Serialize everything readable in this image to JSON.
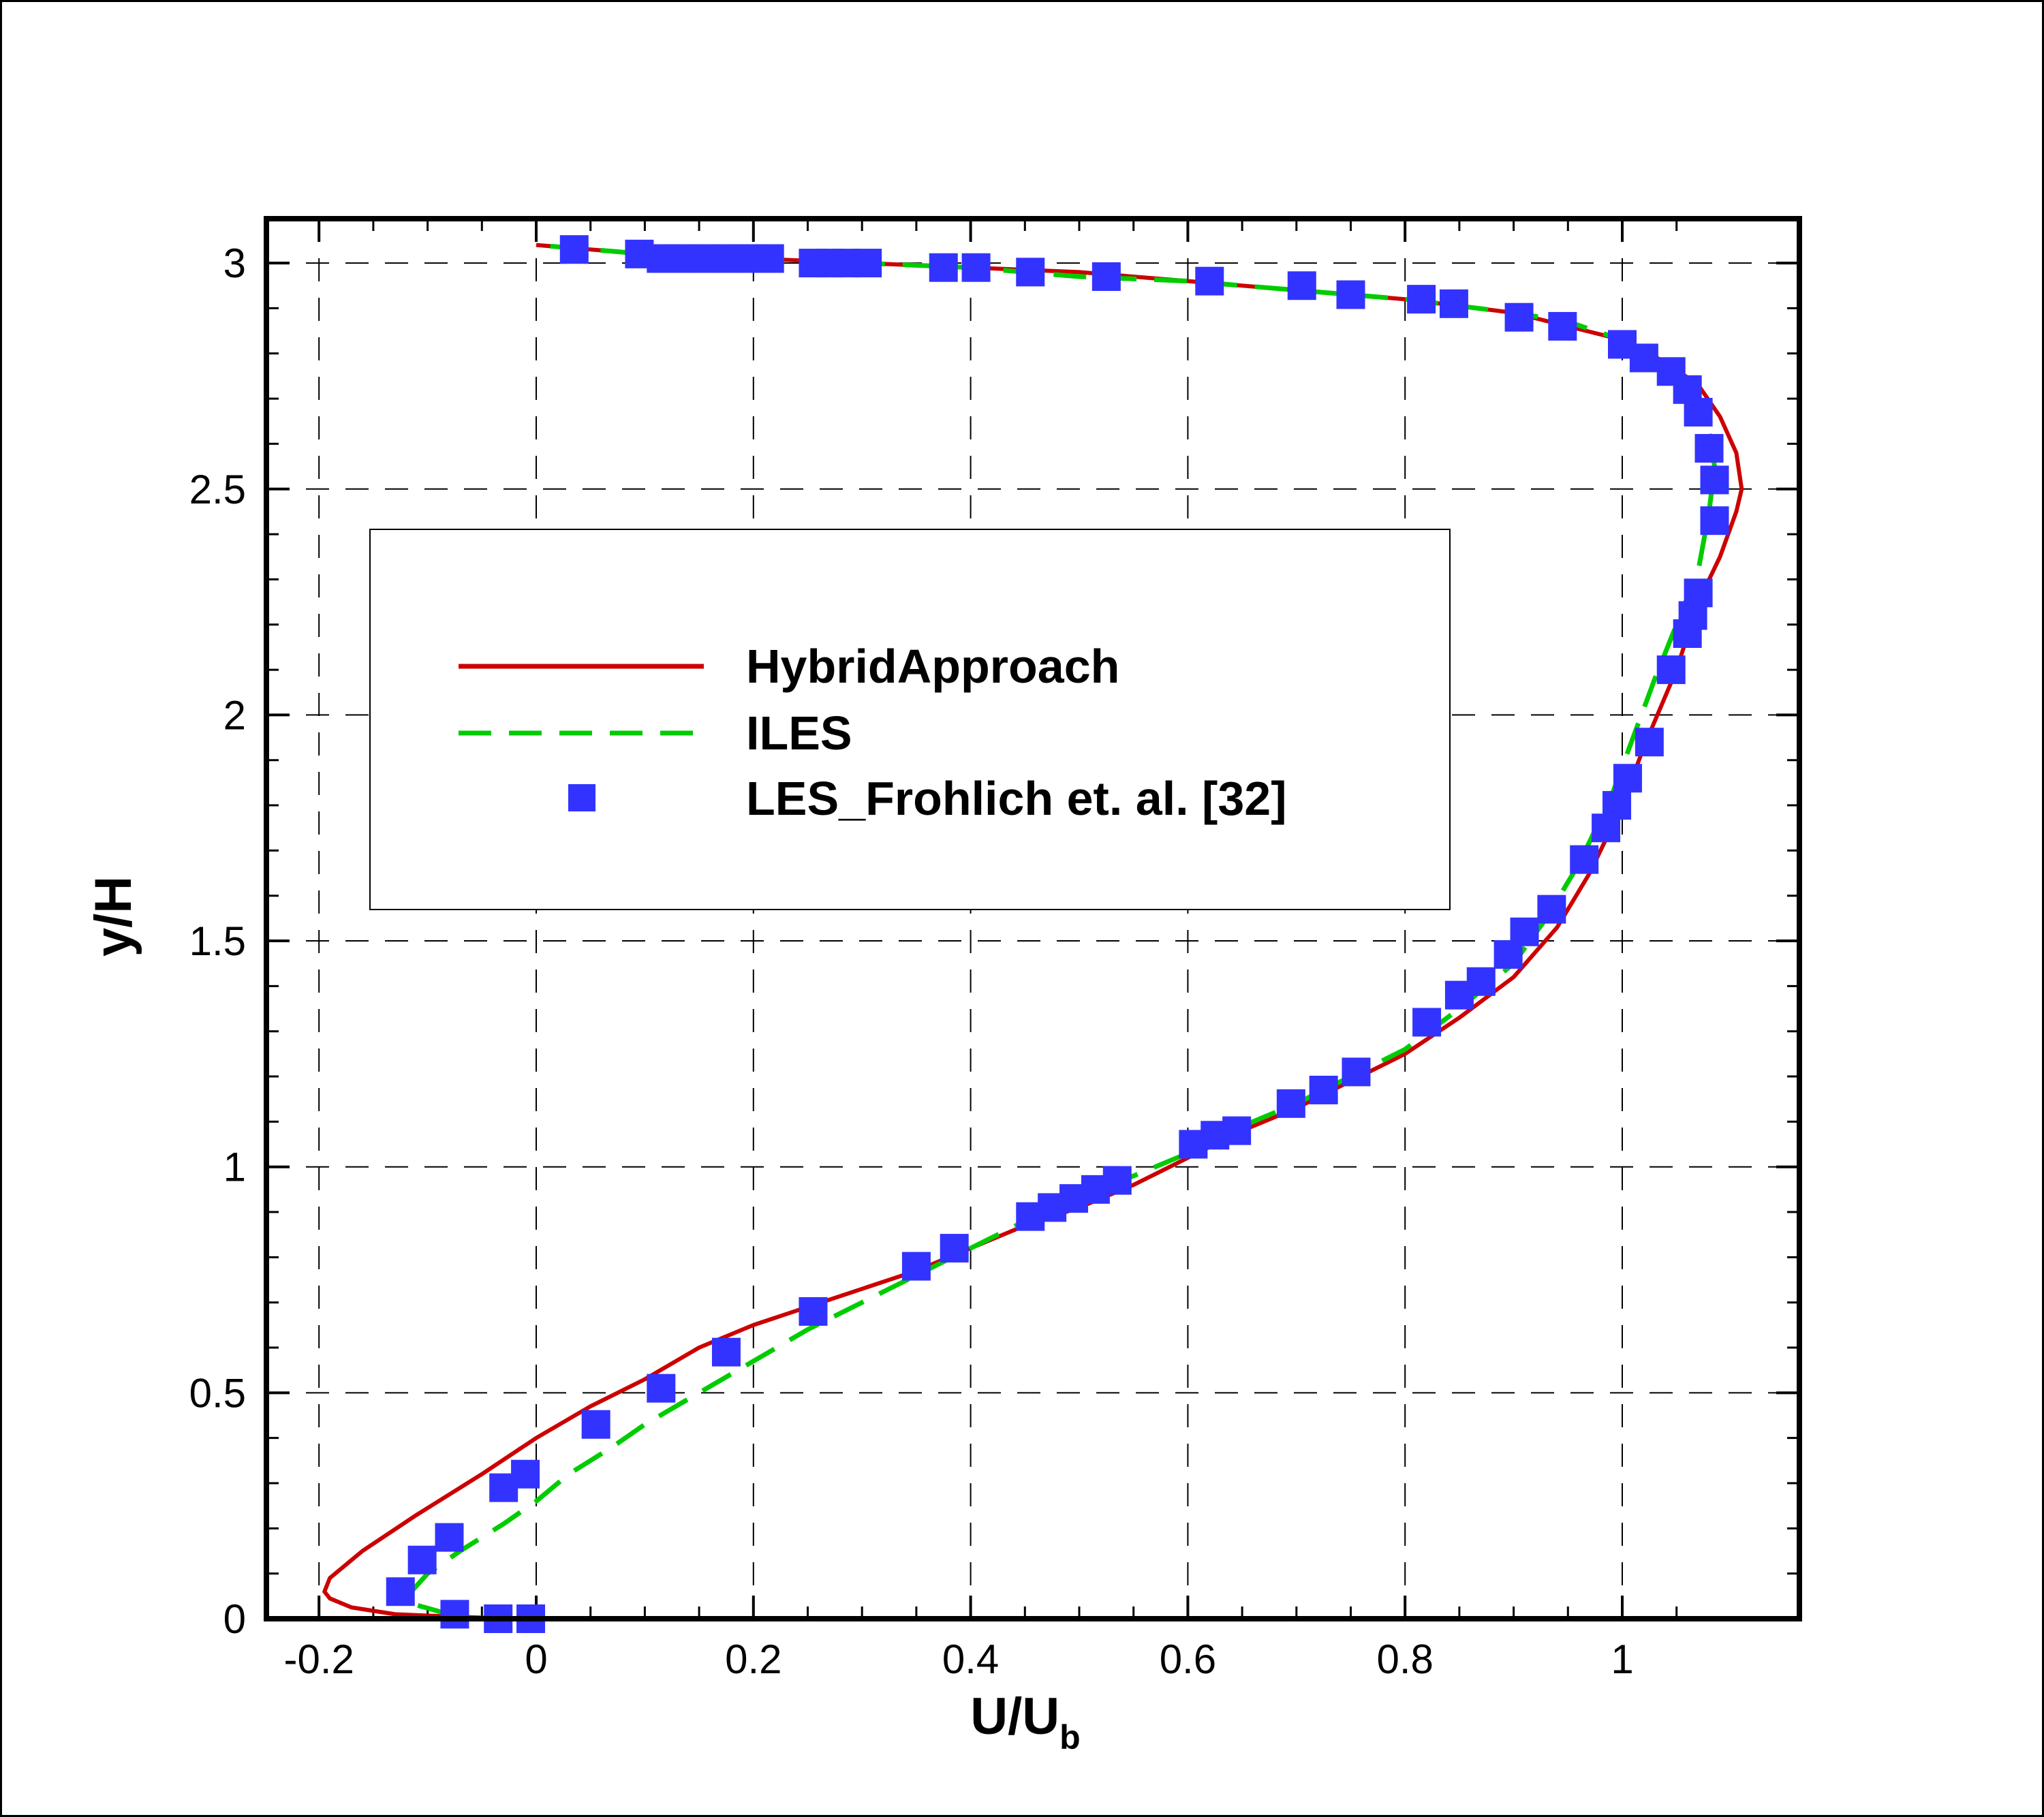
{
  "chart_data": {
    "type": "line",
    "xlabel": "U/U",
    "xlabel_subscript": "b",
    "ylabel": "y/H",
    "xlim": [
      -0.2,
      1.1
    ],
    "ylim": [
      0,
      3.1
    ],
    "x_ticks": [
      -0.2,
      0,
      0.2,
      0.4,
      0.6,
      0.8,
      1
    ],
    "x_tick_labels": [
      "-0.2",
      "0",
      "0.2",
      "0.4",
      "0.6",
      "0.8",
      "1"
    ],
    "y_ticks": [
      0,
      0.5,
      1,
      1.5,
      2,
      2.5,
      3
    ],
    "y_tick_labels": [
      "0",
      "0.5",
      "1",
      "1.5",
      "2",
      "2.5",
      "3"
    ],
    "grid": true,
    "legend_position": "center-left",
    "colors": {
      "hybrid": "#cc0000",
      "iles": "#00cc00",
      "les": "#3333ff"
    },
    "series": [
      {
        "name": "HybridApproach",
        "style": "solid",
        "color": "#cc0000",
        "points": [
          [
            -0.02,
            0.0
          ],
          [
            -0.08,
            0.005
          ],
          [
            -0.13,
            0.01
          ],
          [
            -0.17,
            0.025
          ],
          [
            -0.19,
            0.045
          ],
          [
            -0.195,
            0.06
          ],
          [
            -0.19,
            0.09
          ],
          [
            -0.16,
            0.15
          ],
          [
            -0.11,
            0.23
          ],
          [
            -0.05,
            0.32
          ],
          [
            0.0,
            0.4
          ],
          [
            0.05,
            0.47
          ],
          [
            0.1,
            0.53
          ],
          [
            0.15,
            0.6
          ],
          [
            0.2,
            0.65
          ],
          [
            0.25,
            0.69
          ],
          [
            0.3,
            0.73
          ],
          [
            0.35,
            0.77
          ],
          [
            0.4,
            0.82
          ],
          [
            0.45,
            0.87
          ],
          [
            0.5,
            0.91
          ],
          [
            0.55,
            0.96
          ],
          [
            0.6,
            1.02
          ],
          [
            0.65,
            1.08
          ],
          [
            0.7,
            1.13
          ],
          [
            0.75,
            1.19
          ],
          [
            0.8,
            1.25
          ],
          [
            0.85,
            1.33
          ],
          [
            0.9,
            1.42
          ],
          [
            0.94,
            1.53
          ],
          [
            0.97,
            1.65
          ],
          [
            1.0,
            1.8
          ],
          [
            1.02,
            1.93
          ],
          [
            1.05,
            2.1
          ],
          [
            1.07,
            2.25
          ],
          [
            1.09,
            2.35
          ],
          [
            1.105,
            2.45
          ],
          [
            1.11,
            2.5
          ],
          [
            1.105,
            2.58
          ],
          [
            1.09,
            2.66
          ],
          [
            1.07,
            2.73
          ],
          [
            1.04,
            2.78
          ],
          [
            1.0,
            2.83
          ],
          [
            0.95,
            2.86
          ],
          [
            0.9,
            2.89
          ],
          [
            0.8,
            2.92
          ],
          [
            0.7,
            2.94
          ],
          [
            0.6,
            2.96
          ],
          [
            0.5,
            2.98
          ],
          [
            0.4,
            2.99
          ],
          [
            0.3,
            3.0
          ],
          [
            0.2,
            3.01
          ],
          [
            0.1,
            3.02
          ],
          [
            0.0,
            3.04
          ]
        ]
      },
      {
        "name": "ILES",
        "style": "dashed",
        "color": "#00cc00",
        "points": [
          [
            -0.08,
            0.01
          ],
          [
            -0.11,
            0.03
          ],
          [
            -0.115,
            0.06
          ],
          [
            -0.1,
            0.1
          ],
          [
            -0.07,
            0.15
          ],
          [
            -0.03,
            0.21
          ],
          [
            0.0,
            0.26
          ],
          [
            0.03,
            0.32
          ],
          [
            0.07,
            0.38
          ],
          [
            0.1,
            0.43
          ],
          [
            0.15,
            0.5
          ],
          [
            0.2,
            0.57
          ],
          [
            0.25,
            0.64
          ],
          [
            0.3,
            0.7
          ],
          [
            0.35,
            0.76
          ],
          [
            0.4,
            0.82
          ],
          [
            0.45,
            0.88
          ],
          [
            0.5,
            0.93
          ],
          [
            0.55,
            0.98
          ],
          [
            0.6,
            1.03
          ],
          [
            0.65,
            1.09
          ],
          [
            0.7,
            1.14
          ],
          [
            0.75,
            1.2
          ],
          [
            0.8,
            1.26
          ],
          [
            0.85,
            1.35
          ],
          [
            0.9,
            1.45
          ],
          [
            0.93,
            1.55
          ],
          [
            0.96,
            1.67
          ],
          [
            0.99,
            1.82
          ],
          [
            1.01,
            1.95
          ],
          [
            1.03,
            2.08
          ],
          [
            1.05,
            2.2
          ],
          [
            1.07,
            2.32
          ],
          [
            1.08,
            2.45
          ],
          [
            1.085,
            2.55
          ],
          [
            1.08,
            2.63
          ],
          [
            1.06,
            2.71
          ],
          [
            1.04,
            2.77
          ],
          [
            1.0,
            2.83
          ],
          [
            0.95,
            2.87
          ],
          [
            0.9,
            2.89
          ],
          [
            0.8,
            2.92
          ],
          [
            0.7,
            2.94
          ],
          [
            0.6,
            2.96
          ],
          [
            0.5,
            2.97
          ],
          [
            0.4,
            2.99
          ],
          [
            0.3,
            3.0
          ],
          [
            0.2,
            3.01
          ],
          [
            0.1,
            3.02
          ],
          [
            0.0,
            3.04
          ]
        ]
      },
      {
        "name": "LES_Frohlich et. al. [32]",
        "style": "markers",
        "color": "#3333ff",
        "points": [
          [
            -0.005,
            0.0
          ],
          [
            -0.035,
            0.0
          ],
          [
            -0.075,
            0.01
          ],
          [
            -0.125,
            0.06
          ],
          [
            -0.105,
            0.13
          ],
          [
            -0.08,
            0.18
          ],
          [
            -0.03,
            0.29
          ],
          [
            -0.01,
            0.32
          ],
          [
            0.055,
            0.43
          ],
          [
            0.115,
            0.51
          ],
          [
            0.175,
            0.59
          ],
          [
            0.255,
            0.68
          ],
          [
            0.35,
            0.78
          ],
          [
            0.385,
            0.82
          ],
          [
            0.455,
            0.89
          ],
          [
            0.475,
            0.91
          ],
          [
            0.495,
            0.93
          ],
          [
            0.515,
            0.95
          ],
          [
            0.535,
            0.97
          ],
          [
            0.605,
            1.05
          ],
          [
            0.625,
            1.07
          ],
          [
            0.645,
            1.08
          ],
          [
            0.695,
            1.14
          ],
          [
            0.725,
            1.17
          ],
          [
            0.755,
            1.21
          ],
          [
            0.82,
            1.32
          ],
          [
            0.85,
            1.38
          ],
          [
            0.87,
            1.41
          ],
          [
            0.895,
            1.47
          ],
          [
            0.91,
            1.52
          ],
          [
            0.935,
            1.57
          ],
          [
            0.965,
            1.68
          ],
          [
            0.985,
            1.75
          ],
          [
            0.995,
            1.8
          ],
          [
            1.005,
            1.86
          ],
          [
            1.025,
            1.94
          ],
          [
            1.045,
            2.1
          ],
          [
            1.06,
            2.18
          ],
          [
            1.065,
            2.22
          ],
          [
            1.07,
            2.27
          ],
          [
            1.085,
            2.43
          ],
          [
            1.085,
            2.52
          ],
          [
            1.08,
            2.59
          ],
          [
            1.07,
            2.67
          ],
          [
            1.06,
            2.72
          ],
          [
            1.045,
            2.76
          ],
          [
            1.02,
            2.79
          ],
          [
            1.0,
            2.82
          ],
          [
            0.945,
            2.86
          ],
          [
            0.905,
            2.88
          ],
          [
            0.845,
            2.91
          ],
          [
            0.815,
            2.92
          ],
          [
            0.75,
            2.93
          ],
          [
            0.705,
            2.95
          ],
          [
            0.62,
            2.96
          ],
          [
            0.525,
            2.97
          ],
          [
            0.455,
            2.98
          ],
          [
            0.405,
            2.99
          ],
          [
            0.375,
            2.99
          ],
          [
            0.305,
            3.0
          ],
          [
            0.285,
            3.0
          ],
          [
            0.27,
            3.0
          ],
          [
            0.255,
            3.0
          ],
          [
            0.215,
            3.01
          ],
          [
            0.195,
            3.01
          ],
          [
            0.175,
            3.01
          ],
          [
            0.155,
            3.01
          ],
          [
            0.135,
            3.01
          ],
          [
            0.115,
            3.01
          ],
          [
            0.095,
            3.02
          ],
          [
            0.035,
            3.03
          ]
        ]
      }
    ]
  },
  "legend": {
    "entries": [
      {
        "label": "HybridApproach"
      },
      {
        "label": "ILES"
      },
      {
        "label": "LES_Frohlich et. al. [32]"
      }
    ]
  }
}
